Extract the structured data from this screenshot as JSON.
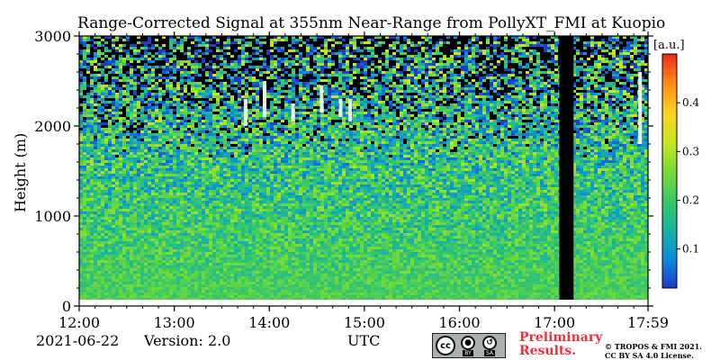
{
  "chart_data": {
    "type": "heatmap",
    "title": "Range-Corrected Signal at 355nm Near-Range from PollyXT_FMI at Kuopio",
    "xlabel": "UTC",
    "ylabel": "Height (m)",
    "x_ticks": [
      "12:00",
      "13:00",
      "14:00",
      "15:00",
      "16:00",
      "17:00",
      "17:59"
    ],
    "x_range_hours": [
      12.0,
      17.983
    ],
    "y_ticks": [
      0,
      1000,
      2000,
      3000
    ],
    "ylim": [
      0,
      3000
    ],
    "colorbar": {
      "label": "[a.u.]",
      "ticks": [
        0.1,
        0.2,
        0.3,
        0.4
      ],
      "range": [
        0.02,
        0.5
      ],
      "colors": [
        "#1e3cc8",
        "#0a8cdc",
        "#18b4a0",
        "#3cc864",
        "#78dc32",
        "#c8e61e",
        "#ffd21e",
        "#ff8c14",
        "#f02814"
      ]
    },
    "no_data_gap_hours": [
      17.05,
      17.2
    ],
    "lowest_valid_height_m": 70,
    "cloud_signals": [
      {
        "time_h": 13.75,
        "height_range_m": [
          2000,
          2300
        ]
      },
      {
        "time_h": 13.95,
        "height_range_m": [
          2100,
          2500
        ]
      },
      {
        "time_h": 14.25,
        "height_range_m": [
          2050,
          2250
        ]
      },
      {
        "time_h": 14.55,
        "height_range_m": [
          2150,
          2450
        ]
      },
      {
        "time_h": 14.75,
        "height_range_m": [
          2100,
          2300
        ]
      },
      {
        "time_h": 14.85,
        "height_range_m": [
          2050,
          2300
        ]
      },
      {
        "time_h": 17.9,
        "height_range_m": [
          1800,
          2600
        ]
      }
    ]
  },
  "footer": {
    "date": "2021-06-22",
    "version": "Version: 2.0",
    "preliminary_line1": "Preliminary",
    "preliminary_line2": "Results.",
    "copyright_line1": "© TROPOS & FMI 2021.",
    "copyright_line2": "CC BY SA 4.0 License.",
    "badge": {
      "cc": "cc",
      "by": "BY",
      "sa": "SA"
    }
  }
}
